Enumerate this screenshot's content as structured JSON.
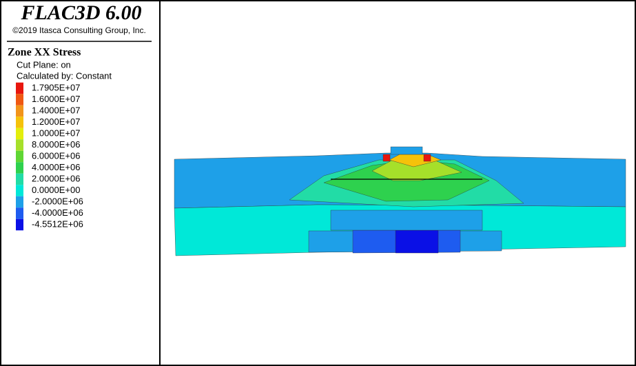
{
  "header": {
    "title": "FLAC3D 6.00",
    "copyright": "©2019 Itasca Consulting Group, Inc."
  },
  "legend": {
    "title": "Zone XX Stress",
    "lines": [
      "Cut Plane: on",
      "Calculated by: Constant"
    ],
    "items": [
      {
        "label": "1.7905E+07",
        "color": "#e8160e"
      },
      {
        "label": "1.6000E+07",
        "color": "#f05812"
      },
      {
        "label": "1.4000E+07",
        "color": "#f2941a"
      },
      {
        "label": "1.2000E+07",
        "color": "#f5c20a"
      },
      {
        "label": "1.0000E+07",
        "color": "#e3ee0c"
      },
      {
        "label": "8.0000E+06",
        "color": "#a6e02a"
      },
      {
        "label": "6.0000E+06",
        "color": "#5fd634"
      },
      {
        "label": "4.0000E+06",
        "color": "#2ed14e"
      },
      {
        "label": "2.0000E+06",
        "color": "#22dca6"
      },
      {
        "label": "0.0000E+00",
        "color": "#00e8d8"
      },
      {
        "label": "-2.0000E+06",
        "color": "#1ea0e8"
      },
      {
        "label": "-4.0000E+06",
        "color": "#1e5cf0"
      },
      {
        "label": "-4.5512E+06",
        "color": "#0a10e6"
      }
    ]
  }
}
